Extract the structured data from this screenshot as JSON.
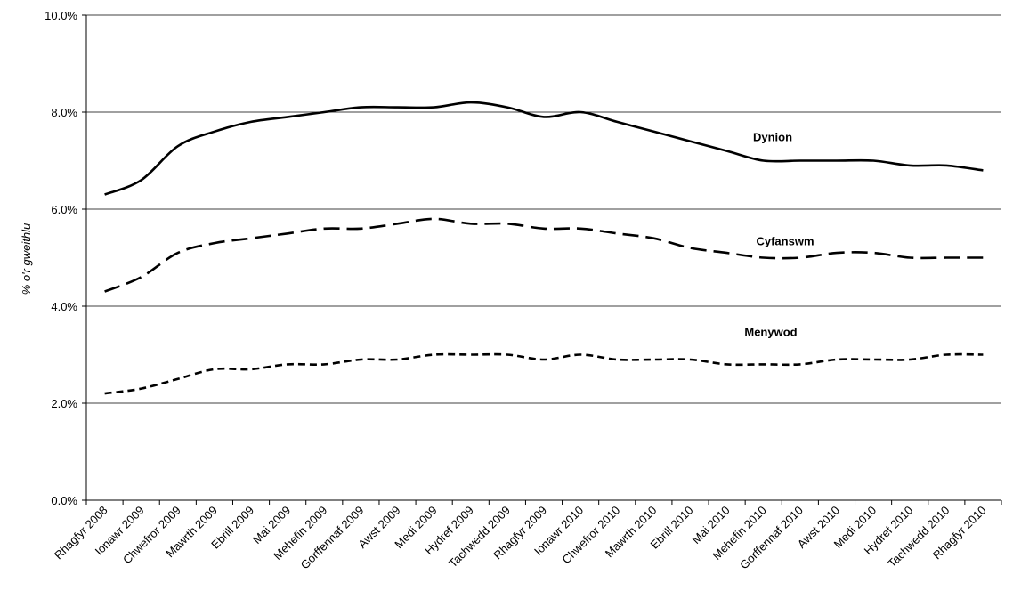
{
  "chart_data": {
    "type": "line",
    "title": "",
    "xlabel": "",
    "ylabel": "% o'r gweithlu",
    "ylim": [
      0,
      10
    ],
    "yticks": [
      0,
      2,
      4,
      6,
      8,
      10
    ],
    "ytick_labels": [
      "0.0%",
      "2.0%",
      "4.0%",
      "6.0%",
      "8.0%",
      "10.0%"
    ],
    "grid": true,
    "legend": "none",
    "categories": [
      "Rhagfyr 2008",
      "Ionawr 2009",
      "Chwefror 2009",
      "Mawrth 2009",
      "Ebrill 2009",
      "Mai 2009",
      "Mehefin 2009",
      "Gorffennaf 2009",
      "Awst 2009",
      "Medi 2009",
      "Hydref 2009",
      "Tachwedd 2009",
      "Rhagfyr 2009",
      "Ionawr 2010",
      "Chwefror 2010",
      "Mawrth 2010",
      "Ebrill 2010",
      "Mai 2010",
      "Mehefin 2010",
      "Gorffennaf 2010",
      "Awst 2010",
      "Medi 2010",
      "Hydref 2010",
      "Tachwedd 2010",
      "Rhagfyr 2010"
    ],
    "series": [
      {
        "name": "Dynion",
        "dash": "solid",
        "color": "#000000",
        "values": [
          6.3,
          6.6,
          7.3,
          7.6,
          7.8,
          7.9,
          8.0,
          8.1,
          8.1,
          8.1,
          8.2,
          8.1,
          7.9,
          8.0,
          7.8,
          7.6,
          7.4,
          7.2,
          7.0,
          7.0,
          7.0,
          7.0,
          6.9,
          6.9,
          6.8
        ]
      },
      {
        "name": "Cyfanswm",
        "dash": "long-dash",
        "color": "#000000",
        "values": [
          4.3,
          4.6,
          5.1,
          5.3,
          5.4,
          5.5,
          5.6,
          5.6,
          5.7,
          5.8,
          5.7,
          5.7,
          5.6,
          5.6,
          5.5,
          5.4,
          5.2,
          5.1,
          5.0,
          5.0,
          5.1,
          5.1,
          5.0,
          5.0,
          5.0
        ]
      },
      {
        "name": "Menywod",
        "dash": "short-dash",
        "color": "#000000",
        "values": [
          2.2,
          2.3,
          2.5,
          2.7,
          2.7,
          2.8,
          2.8,
          2.9,
          2.9,
          3.0,
          3.0,
          3.0,
          2.9,
          3.0,
          2.9,
          2.9,
          2.9,
          2.8,
          2.8,
          2.8,
          2.9,
          2.9,
          2.9,
          3.0,
          3.0
        ]
      }
    ]
  }
}
